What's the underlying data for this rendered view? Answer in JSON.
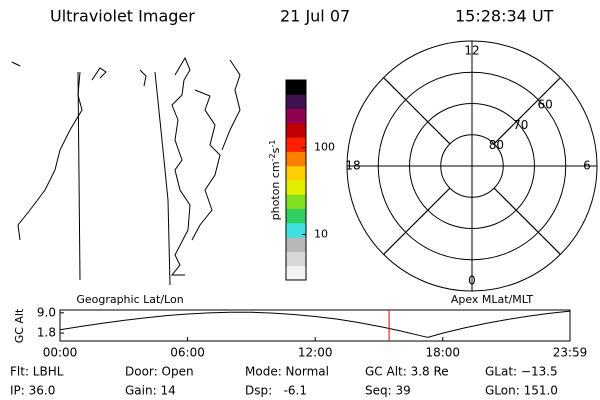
{
  "header": {
    "title": "Ultraviolet Imager",
    "date": "21 Jul 07",
    "time": "15:28:34 UT"
  },
  "colorbar": {
    "label": "photon cm",
    "exp1": "-2",
    "unit2": "s",
    "exp2": "-1",
    "log": true,
    "clim": [
      3,
      600
    ],
    "ticks": [
      10,
      100
    ],
    "colors": [
      "#f4f4f4",
      "#d8d8d8",
      "#b8b8b8",
      "#40e0e0",
      "#30d060",
      "#80e020",
      "#e0f000",
      "#ffd000",
      "#ff8000",
      "#ff2000",
      "#c00000",
      "#900050",
      "#401050",
      "#000000"
    ]
  },
  "polar": {
    "rlim": [
      90,
      50
    ],
    "rings": [
      60,
      70,
      80
    ],
    "mlt_labels": [
      12,
      18,
      6,
      0
    ]
  },
  "panel_labels": {
    "left": "Geographic Lat/Lon",
    "right": "Apex MLat/MLT"
  },
  "chart_data": {
    "type": "line",
    "ylabel": "GC Alt",
    "color": "#000000",
    "x": [
      0,
      1,
      2,
      3,
      4,
      5,
      6,
      7,
      8,
      9,
      10,
      11,
      12,
      13,
      14,
      15,
      16,
      17,
      17.3,
      18,
      19,
      20,
      21,
      22,
      23,
      23.983
    ],
    "values": [
      3.0,
      4.2,
      5.3,
      6.3,
      7.2,
      8.0,
      8.6,
      9.0,
      9.2,
      9.2,
      8.9,
      8.4,
      7.7,
      6.8,
      5.6,
      4.2,
      2.6,
      0.8,
      0.3,
      1.8,
      3.6,
      5.2,
      6.6,
      7.8,
      8.8,
      9.6
    ],
    "xlim": [
      0,
      23.983
    ],
    "ylim": [
      -1,
      10
    ],
    "xticks": [
      {
        "value": 0,
        "label": "00:00"
      },
      {
        "value": 6,
        "label": "06:00"
      },
      {
        "value": 12,
        "label": "12:00"
      },
      {
        "value": 18,
        "label": "18:00"
      },
      {
        "value": 23.983,
        "label": "23:59"
      }
    ],
    "yticks": [
      1.8,
      {
        "value": 9,
        "label": "9.0"
      }
    ],
    "current_time": 15.476,
    "current_color": "#e00000"
  },
  "status": [
    [
      "Flt: LBHL",
      "Door: Open",
      "Mode: Normal",
      "GC Alt: 3.8 Re",
      "GLat: −13.5"
    ],
    [
      "IP: 36.0",
      "Gain: 14",
      "Dsp:   -6.1",
      "Seq: 39",
      "GLon: 151.0"
    ]
  ]
}
